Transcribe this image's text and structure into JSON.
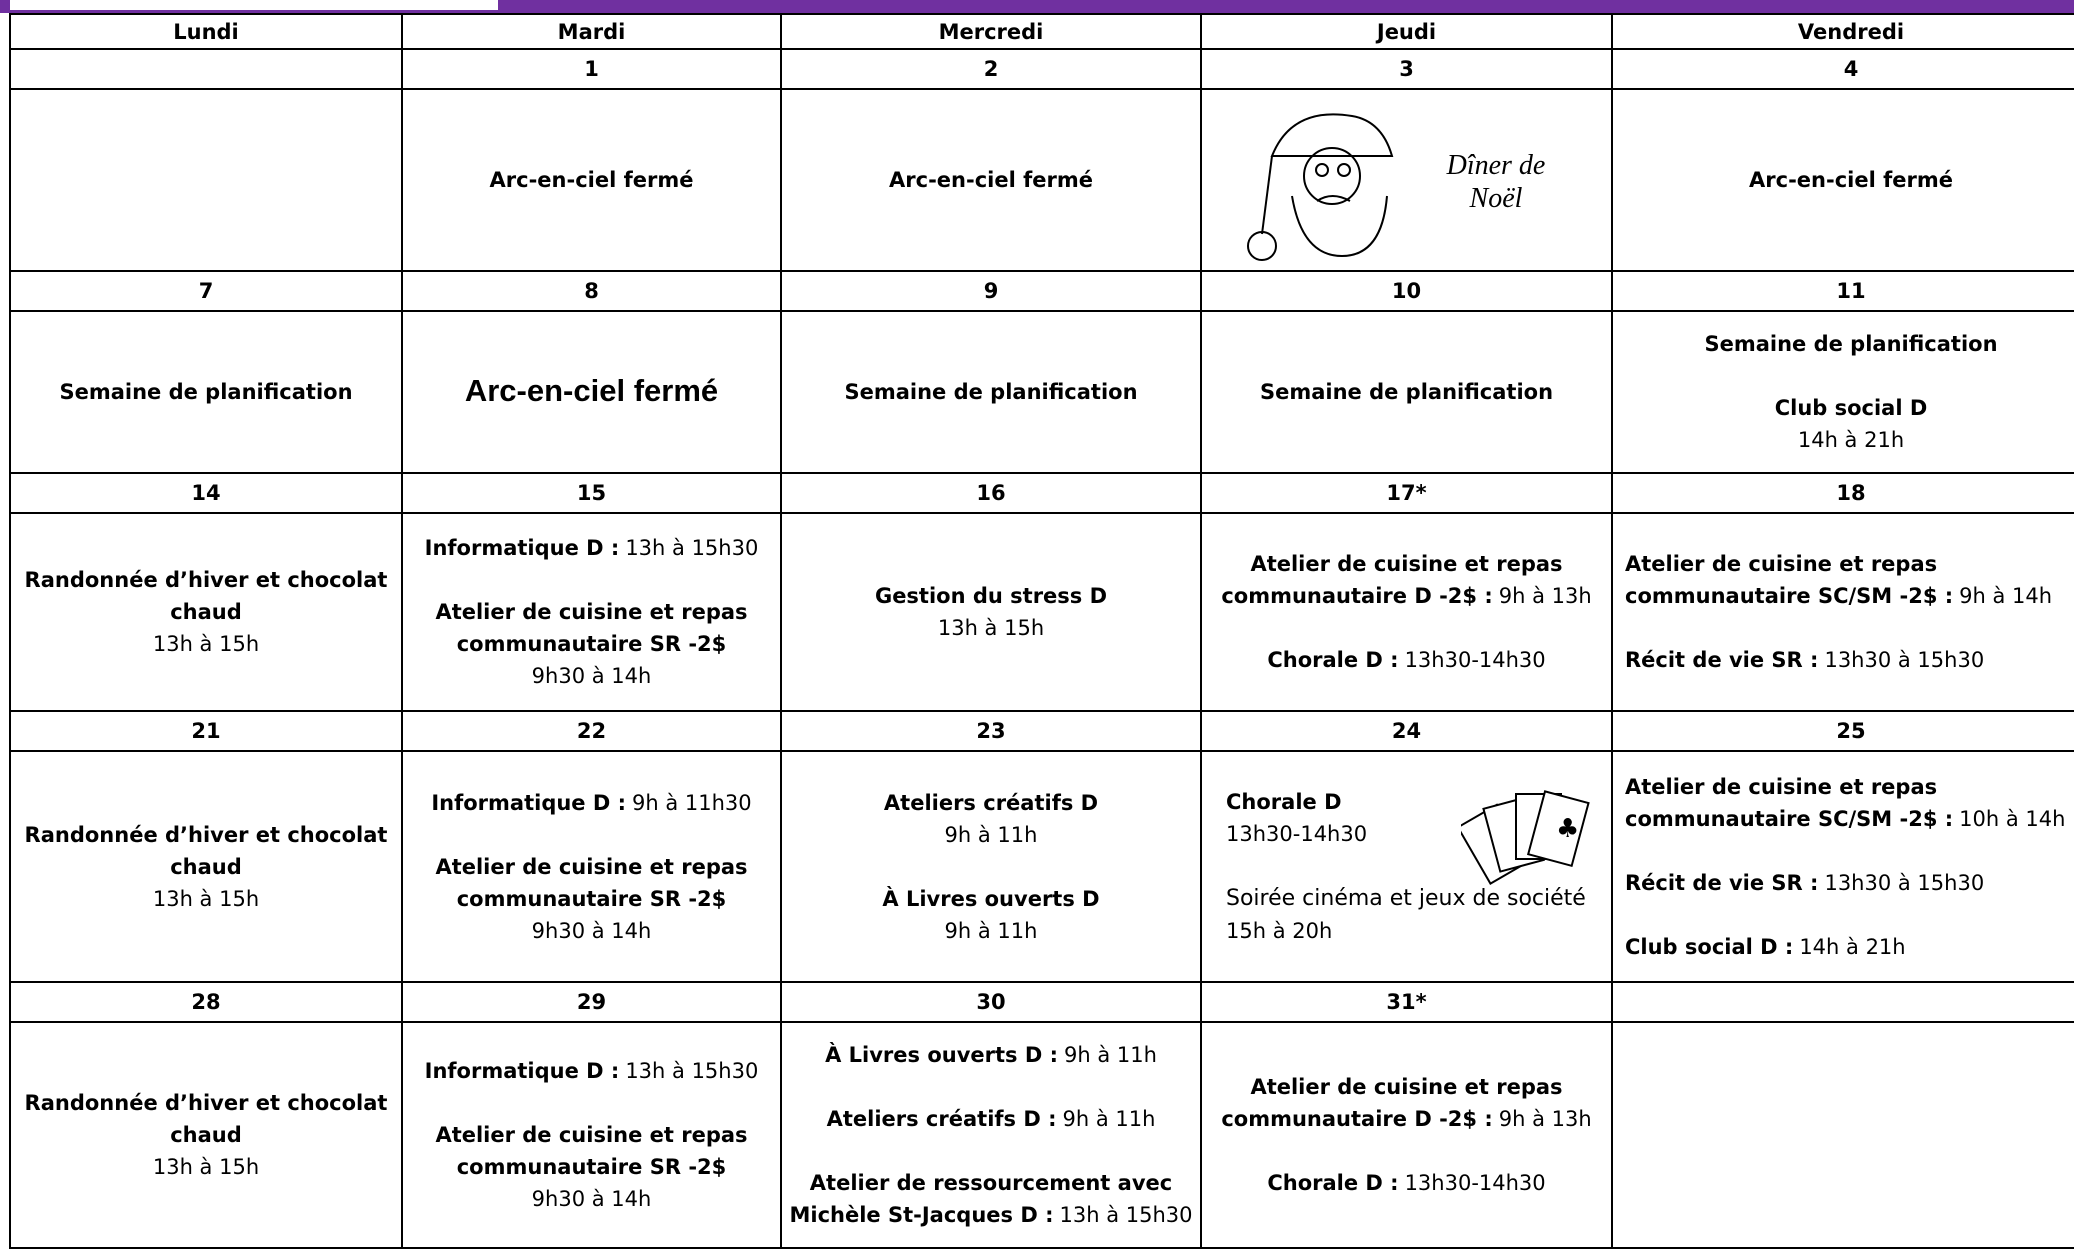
{
  "table": {
    "days": [
      "Lundi",
      "Mardi",
      "Mercredi",
      "Jeudi",
      "Vendredi"
    ],
    "weeks": [
      {
        "dates": [
          null,
          "1",
          "2",
          "3",
          "4"
        ],
        "cells": [
          {
            "paras": []
          },
          {
            "paras": [
              [
                {
                  "b": "Arc-en-ciel fermé"
                }
              ]
            ]
          },
          {
            "paras": [
              [
                {
                  "b": "Arc-en-ciel fermé"
                }
              ]
            ]
          },
          {
            "style": "santa",
            "paras": [
              [
                {
                  "s": "Dîner de Noël"
                }
              ]
            ]
          },
          {
            "paras": [
              [
                {
                  "b": "Arc-en-ciel fermé"
                }
              ]
            ]
          }
        ]
      },
      {
        "dates": [
          "7",
          "8",
          "9",
          "10",
          "11"
        ],
        "cells": [
          {
            "paras": [
              [
                {
                  "b": "Semaine de planification"
                }
              ]
            ]
          },
          {
            "style": "large",
            "paras": [
              [
                {
                  "b": "Arc-en-ciel fermé"
                }
              ]
            ]
          },
          {
            "paras": [
              [
                {
                  "b": "Semaine de planification"
                }
              ]
            ]
          },
          {
            "paras": [
              [
                {
                  "b": "Semaine de planification"
                }
              ]
            ]
          },
          {
            "paras": [
              [
                {
                  "b": "Semaine de planification"
                }
              ],
              [
                {
                  "b": "Club social D"
                },
                {
                  "t": "14h à 21h"
                }
              ]
            ]
          }
        ]
      },
      {
        "dates": [
          "14",
          "15",
          "16",
          "17*",
          "18"
        ],
        "cells": [
          {
            "paras": [
              [
                {
                  "b": "Randonnée d’hiver et chocolat chaud"
                },
                {
                  "t": "13h à 15h"
                }
              ]
            ]
          },
          {
            "paras": [
              [
                {
                  "b": "Informatique D :",
                  "t": "13h à 15h30"
                }
              ],
              [
                {
                  "b": "Atelier de cuisine et repas communautaire SR -2$"
                },
                {
                  "t": "9h30 à 14h"
                }
              ]
            ]
          },
          {
            "paras": [
              [
                {
                  "b": "Gestion du stress D"
                },
                {
                  "t": "13h à 15h"
                }
              ]
            ]
          },
          {
            "paras": [
              [
                {
                  "b": "Atelier de cuisine et repas communautaire D -2$ :",
                  "t": "9h à 13h"
                }
              ],
              [
                {
                  "b": "Chorale D :",
                  "t": "13h30-14h30"
                }
              ]
            ]
          },
          {
            "style": "left",
            "paras": [
              [
                {
                  "b": "Atelier de cuisine et repas communautaire SC/SM -2$ :",
                  "t": "9h à 14h"
                }
              ],
              [
                {
                  "b": "Récit de vie  SR :",
                  "t": "13h30 à 15h30"
                }
              ]
            ]
          }
        ]
      },
      {
        "dates": [
          "21",
          "22",
          "23",
          "24",
          "25"
        ],
        "cells": [
          {
            "paras": [
              [
                {
                  "b": "Randonnée d’hiver et chocolat chaud"
                },
                {
                  "t": "13h à 15h"
                }
              ]
            ]
          },
          {
            "paras": [
              [
                {
                  "b": "Informatique D :",
                  "t": "9h à 11h30"
                }
              ],
              [
                {
                  "b": "Atelier de cuisine et repas communautaire SR -2$"
                },
                {
                  "t": "9h30 à 14h"
                }
              ]
            ]
          },
          {
            "paras": [
              [
                {
                  "b": "Ateliers créatifs D"
                },
                {
                  "t": "9h à 11h"
                }
              ],
              [
                {
                  "b": "À Livres ouverts D"
                },
                {
                  "t": "9h à 11h"
                }
              ]
            ]
          },
          {
            "style": "cards",
            "paras": [
              [
                {
                  "b": "Chorale D"
                },
                {
                  "t": "13h30-14h30"
                }
              ],
              [
                {
                  "s": "Soirée cinéma et jeux de société"
                },
                {
                  "t": "15h à 20h"
                }
              ]
            ]
          },
          {
            "style": "left",
            "paras": [
              [
                {
                  "b": "Atelier de cuisine et repas communautaire SC/SM -2$ :",
                  "t": "10h à 14h"
                }
              ],
              [
                {
                  "b": "Récit de vie  SR :",
                  "t": "13h30 à 15h30"
                }
              ],
              [
                {
                  "b": "Club social D :",
                  "t": "14h à 21h"
                }
              ]
            ]
          }
        ]
      },
      {
        "dates": [
          "28",
          "29",
          "30",
          "31*",
          null
        ],
        "cells": [
          {
            "paras": [
              [
                {
                  "b": "Randonnée d’hiver et chocolat chaud"
                },
                {
                  "t": "13h à 15h"
                }
              ]
            ]
          },
          {
            "paras": [
              [
                {
                  "b": "Informatique D :",
                  "t": "13h à 15h30"
                }
              ],
              [
                {
                  "b": "Atelier de cuisine et repas communautaire SR -2$"
                },
                {
                  "t": "9h30 à 14h"
                }
              ]
            ]
          },
          {
            "paras": [
              [
                {
                  "b": "À Livres ouverts D :",
                  "t": "9h à 11h"
                }
              ],
              [
                {
                  "b": "Ateliers créatifs D :",
                  "t": "9h à 11h"
                }
              ],
              [
                {
                  "b": "Atelier de ressourcement avec Michèle St-Jacques D :",
                  "t": "13h à 15h30"
                }
              ]
            ]
          },
          {
            "paras": [
              [
                {
                  "b": "Atelier de cuisine et repas communautaire D -2$ :",
                  "t": "9h à 13h"
                }
              ],
              [
                {
                  "b": "Chorale D :",
                  "t": "13h30-14h30"
                }
              ]
            ]
          },
          {
            "paras": []
          }
        ]
      }
    ]
  }
}
